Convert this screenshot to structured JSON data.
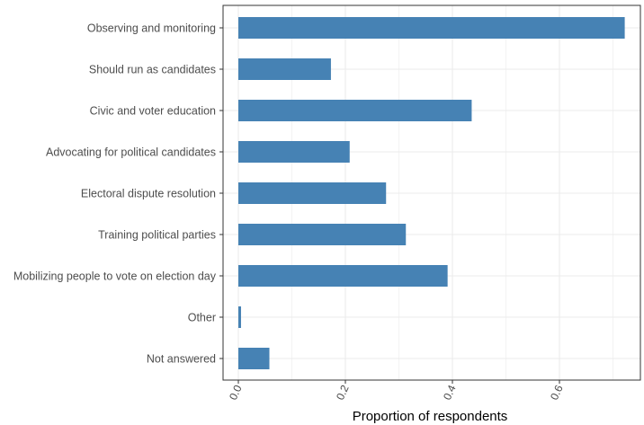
{
  "chart_data": {
    "type": "bar",
    "orientation": "horizontal",
    "title": "",
    "xlabel": "Proportion of respondents",
    "ylabel": "",
    "categories": [
      "Observing and monitoring",
      "Should run as candidates",
      "Civic and voter education",
      "Advocating for political candidates",
      "Electoral dispute resolution",
      "Training political parties",
      "Mobilizing people to vote on election day",
      "Other",
      "Not answered"
    ],
    "values": [
      0.722,
      0.173,
      0.436,
      0.208,
      0.276,
      0.313,
      0.391,
      0.005,
      0.058
    ],
    "xlim": [
      0,
      0.75
    ],
    "xticks": [
      0.0,
      0.2,
      0.4,
      0.6
    ],
    "xtick_labels": [
      "0.0",
      "0.2",
      "0.4",
      "0.6"
    ],
    "grid": true,
    "legend": "none",
    "colors": {
      "bar": "#4682b4",
      "grid": "#ebebeb",
      "panel_border": "#333333"
    }
  }
}
